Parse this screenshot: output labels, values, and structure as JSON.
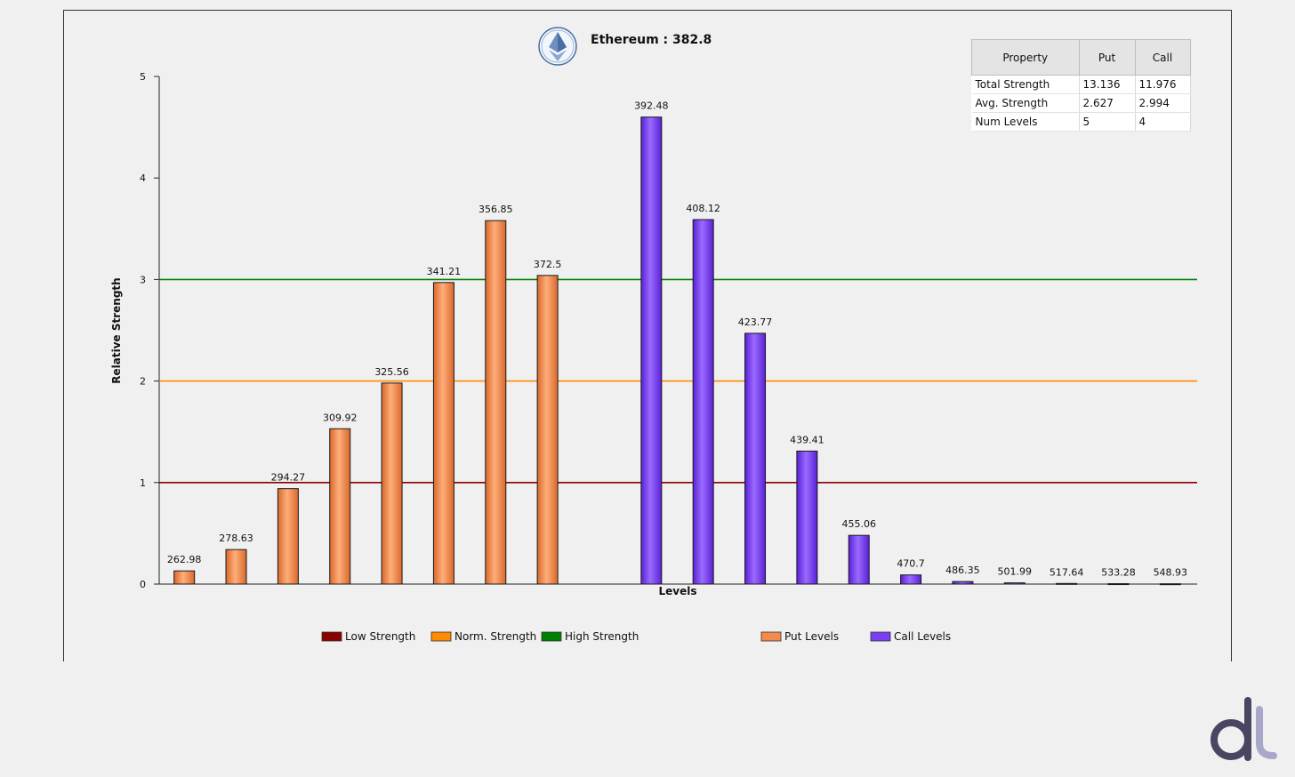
{
  "chart_data": {
    "type": "bar",
    "title": "Ethereum : 382.8",
    "xlabel": "Levels",
    "ylabel": "Relative Strength",
    "ylim": [
      0,
      5
    ],
    "yticks": [
      "0",
      "1",
      "2",
      "3",
      "4",
      "5"
    ],
    "series": [
      {
        "name": "Put Levels",
        "color": "#f28b4c",
        "points": [
          {
            "label": "262.98",
            "value": 0.13
          },
          {
            "label": "278.63",
            "value": 0.34
          },
          {
            "label": "294.27",
            "value": 0.94
          },
          {
            "label": "309.92",
            "value": 1.53
          },
          {
            "label": "325.56",
            "value": 1.98
          },
          {
            "label": "341.21",
            "value": 2.97
          },
          {
            "label": "356.85",
            "value": 3.58
          },
          {
            "label": "372.5",
            "value": 3.04
          }
        ]
      },
      {
        "name": "Call Levels",
        "color": "#7b3ff2",
        "points": [
          {
            "label": "392.48",
            "value": 4.6
          },
          {
            "label": "408.12",
            "value": 3.59
          },
          {
            "label": "423.77",
            "value": 2.47
          },
          {
            "label": "439.41",
            "value": 1.31
          },
          {
            "label": "455.06",
            "value": 0.48
          },
          {
            "label": "470.7",
            "value": 0.09
          },
          {
            "label": "486.35",
            "value": 0.025
          },
          {
            "label": "501.99",
            "value": 0.012
          },
          {
            "label": "517.64",
            "value": 0.006
          },
          {
            "label": "533.28",
            "value": 0.004
          },
          {
            "label": "548.93",
            "value": 0.003
          }
        ]
      }
    ],
    "reference_lines": [
      {
        "name": "Low Strength",
        "value": 1,
        "color": "#8b0000"
      },
      {
        "name": "Norm. Strength",
        "value": 2,
        "color": "#ff8c00"
      },
      {
        "name": "High Strength",
        "value": 3,
        "color": "#008000"
      }
    ],
    "legend_position": "bottom",
    "grid": false
  },
  "legend": {
    "items": [
      {
        "label": "Low Strength",
        "color": "#8b0000"
      },
      {
        "label": "Norm. Strength",
        "color": "#ff8c00"
      },
      {
        "label": "High Strength",
        "color": "#008000"
      },
      {
        "label": "Put Levels",
        "color": "#f28b4c"
      },
      {
        "label": "Call Levels",
        "color": "#7b3ff2"
      }
    ]
  },
  "property_table": {
    "headers": [
      "Property",
      "Put",
      "Call"
    ],
    "rows": [
      [
        "Total Strength",
        "13.136",
        "11.976"
      ],
      [
        "Avg. Strength",
        "2.627",
        "2.994"
      ],
      [
        "Num Levels",
        "5",
        "4"
      ]
    ]
  },
  "icons": {
    "title_logo": "ethereum-logo-icon",
    "corner_logo": "dt-logo-icon"
  }
}
